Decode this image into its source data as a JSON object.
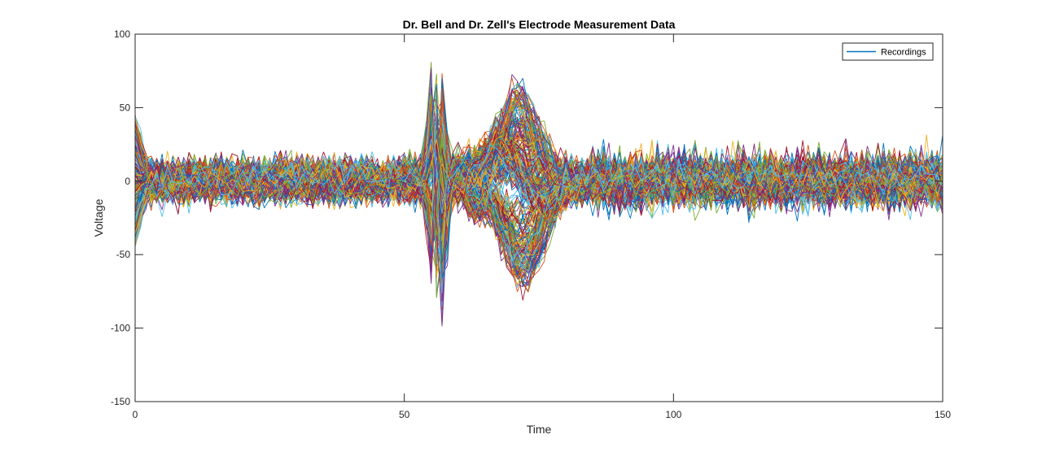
{
  "chart_data": {
    "type": "line",
    "title": "Dr. Bell and Dr. Zell's Electrode Measurement Data",
    "xlabel": "Time",
    "ylabel": "Voltage",
    "xlim": [
      0,
      150
    ],
    "ylim": [
      -150,
      100
    ],
    "xticks": [
      0,
      50,
      100,
      150
    ],
    "yticks": [
      -150,
      -100,
      -50,
      0,
      50,
      100
    ],
    "grid": false,
    "legend": {
      "placement": "top-right",
      "entries": [
        {
          "label": "Recordings",
          "color": "#0072BD"
        }
      ]
    },
    "num_recordings": 300,
    "samples_per_recording": 151,
    "envelope": {
      "x": [
        0,
        1,
        2,
        3,
        10,
        20,
        30,
        40,
        50,
        51,
        53,
        54,
        55,
        56,
        57,
        58,
        60,
        62,
        65,
        70,
        72,
        75,
        80,
        85,
        86,
        90,
        100,
        110,
        120,
        130,
        140,
        150
      ],
      "upper": [
        45,
        42,
        25,
        22,
        20,
        22,
        21,
        20,
        20,
        22,
        28,
        40,
        85,
        92,
        80,
        60,
        55,
        60,
        65,
        73,
        70,
        45,
        35,
        25,
        28,
        30,
        32,
        30,
        30,
        32,
        33,
        34
      ],
      "lower": [
        -63,
        -55,
        -30,
        -25,
        -22,
        -20,
        -20,
        -20,
        -18,
        -18,
        -25,
        -55,
        -100,
        -110,
        -100,
        -75,
        -80,
        -70,
        -80,
        -80,
        -85,
        -75,
        -65,
        -30,
        -28,
        -25,
        -28,
        -30,
        -28,
        -30,
        -28,
        -30
      ]
    },
    "series_colors": [
      "#0072BD",
      "#D95319",
      "#EDB120",
      "#7E2F8E",
      "#77AC30",
      "#4DBEEE",
      "#A2142F"
    ]
  }
}
